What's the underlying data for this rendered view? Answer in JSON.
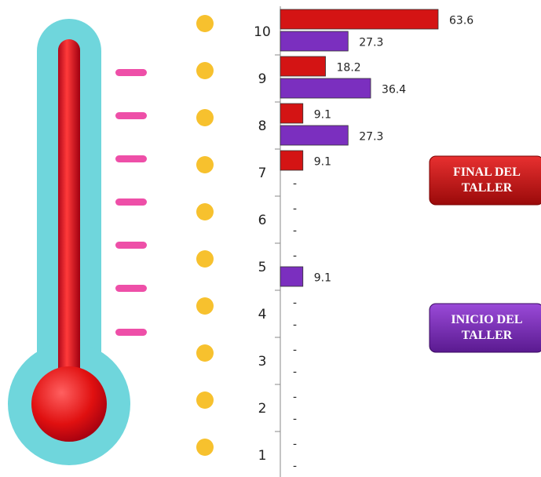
{
  "chart_data": {
    "type": "bar",
    "orientation": "horizontal",
    "categories": [
      "10",
      "9",
      "8",
      "7",
      "6",
      "5",
      "4",
      "3",
      "2",
      "1"
    ],
    "series": [
      {
        "name": "FINAL DEL TALLER",
        "color": "#d41414",
        "values": [
          63.6,
          18.2,
          9.1,
          9.1,
          0,
          0,
          0,
          0,
          0,
          0
        ],
        "value_labels": [
          "63.6",
          "18.2",
          "9.1",
          "9.1",
          "-",
          "-",
          "-",
          "-",
          "-",
          "-"
        ]
      },
      {
        "name": "INICIO DEL TALLER",
        "color": "#7b2fbf",
        "values": [
          27.3,
          36.4,
          27.3,
          0,
          0,
          9.1,
          0,
          0,
          0,
          0
        ],
        "value_labels": [
          "27.3",
          "36.4",
          "27.3",
          "-",
          "-",
          "9.1",
          "-",
          "-",
          "-",
          "-"
        ]
      }
    ]
  }
}
